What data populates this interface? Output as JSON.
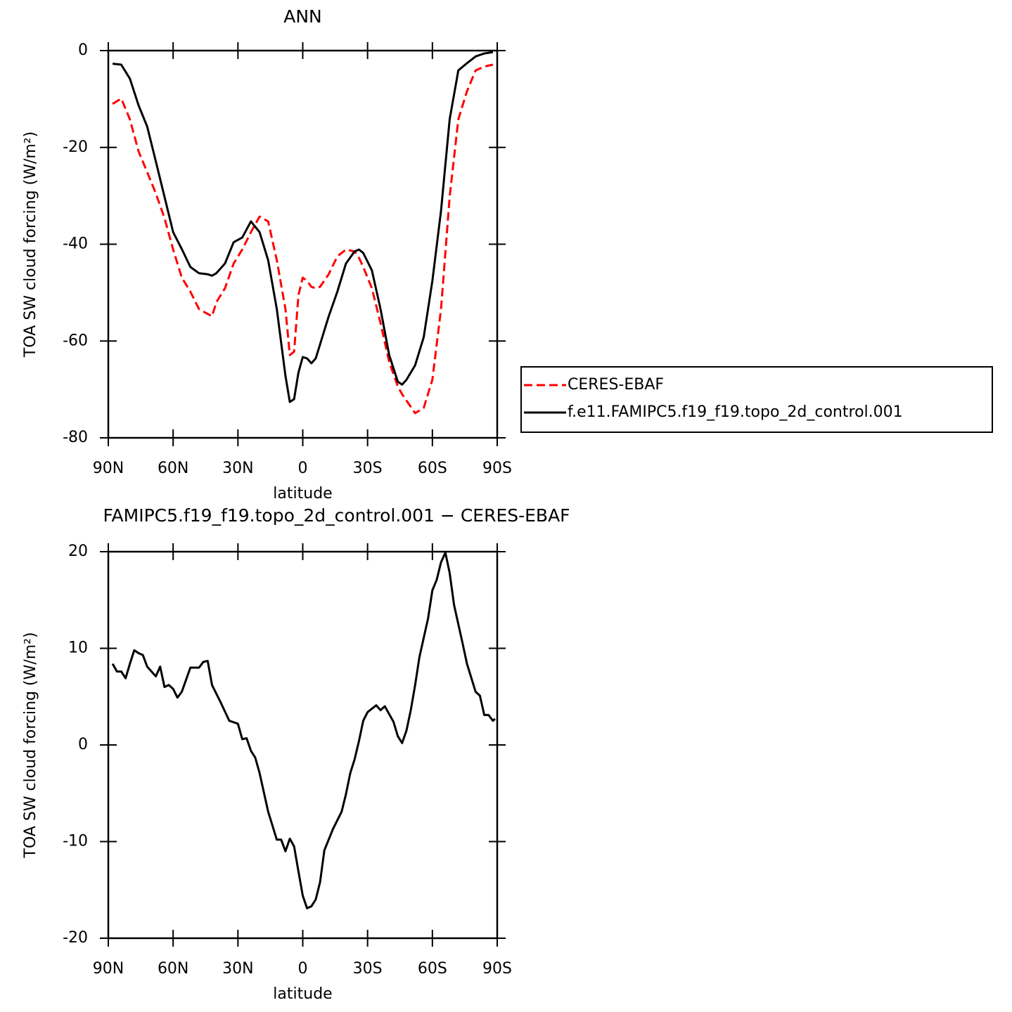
{
  "chart_data": [
    {
      "type": "line",
      "title": "ANN",
      "x_label": "latitude",
      "y_label": "TOA SW cloud forcing (W/m²)",
      "x": [
        88,
        84,
        80,
        76,
        72,
        68,
        64,
        60,
        56,
        52,
        48,
        44,
        42,
        40,
        36,
        32,
        28,
        24,
        20,
        16,
        12,
        8,
        6,
        4,
        2,
        0,
        -2,
        -4,
        -6,
        -8,
        -12,
        -16,
        -20,
        -24,
        -26,
        -28,
        -32,
        -36,
        -40,
        -44,
        -46,
        -48,
        -52,
        -56,
        -60,
        -64,
        -68,
        -72,
        -76,
        -80,
        -84,
        -88
      ],
      "series": [
        {
          "name": "CERES-EBAF",
          "color": "#ff0000",
          "linestyle": "dashed",
          "values": [
            -11,
            -9.9,
            -14.2,
            -20.8,
            -25.1,
            -29.5,
            -34.6,
            -41.1,
            -46.9,
            -49.8,
            -53.4,
            -54.4,
            -54.9,
            -52,
            -49.1,
            -44,
            -41.1,
            -37.5,
            -34.3,
            -35.3,
            -43.3,
            -53.4,
            -62.9,
            -62.2,
            -50.5,
            -46.9,
            -47.6,
            -48.8,
            -49.1,
            -48.8,
            -46.2,
            -42.5,
            -41.1,
            -41.5,
            -42.8,
            -44.7,
            -49.1,
            -56.3,
            -64.3,
            -69.4,
            -71,
            -72.3,
            -74.9,
            -73.8,
            -68,
            -53.4,
            -30.2,
            -14.2,
            -8.4,
            -4.1,
            -3.3,
            -2.9
          ]
        },
        {
          "name": "f.e11.FAMIPC5.f19_f19.topo_2d_control.001",
          "color": "#000000",
          "linestyle": "solid",
          "values": [
            -2.7,
            -2.9,
            -5.8,
            -11.3,
            -15.7,
            -22.9,
            -30.2,
            -37.5,
            -41,
            -44.7,
            -46,
            -46.2,
            -46.5,
            -46,
            -44,
            -39.6,
            -38.6,
            -35.3,
            -37.5,
            -43.3,
            -53.4,
            -67.2,
            -72.6,
            -72,
            -66.5,
            -63.3,
            -63.6,
            -64.6,
            -63.6,
            -60.7,
            -54.9,
            -49.8,
            -44,
            -41.5,
            -41.1,
            -41.8,
            -45.4,
            -53.4,
            -62.9,
            -68.4,
            -69,
            -68,
            -65,
            -59.2,
            -47.6,
            -33.1,
            -14.2,
            -4.1,
            -2.6,
            -1.2,
            -0.6,
            -0.3
          ]
        }
      ],
      "xlim": [
        90,
        -90
      ],
      "xticks": [
        {
          "value": 90,
          "label": "90N"
        },
        {
          "value": 60,
          "label": "60N"
        },
        {
          "value": 30,
          "label": "30N"
        },
        0,
        {
          "value": -30,
          "label": "30S"
        },
        {
          "value": -60,
          "label": "60S"
        },
        {
          "value": -90,
          "label": "90S"
        }
      ],
      "ylim": [
        -80,
        0
      ],
      "yticks": [
        0,
        -20,
        -40,
        -60,
        -80
      ],
      "legend": "right"
    },
    {
      "type": "line",
      "title": "FAMIPC5.f19_f19.topo_2d_control.001 − CERES-EBAF",
      "x_label": "latitude",
      "y_label": "TOA SW cloud forcing (W/m²)",
      "color": "#000000",
      "x": [
        88,
        86,
        84,
        82,
        80,
        78,
        76,
        74,
        72,
        68,
        66,
        64,
        62,
        60,
        58,
        56,
        52,
        48,
        46,
        44,
        42,
        38,
        34,
        30,
        28,
        26,
        24,
        22,
        20,
        16,
        12,
        10,
        8,
        6,
        4,
        2,
        0,
        -2,
        -4,
        -6,
        -8,
        -10,
        -14,
        -18,
        -20,
        -22,
        -24,
        -26,
        -28,
        -30,
        -34,
        -36,
        -38,
        -42,
        -44,
        -46,
        -48,
        -50,
        -52,
        -54,
        -58,
        -60,
        -62,
        -64,
        -66,
        -68,
        -70,
        -74,
        -76,
        -80,
        -82,
        -84,
        -86,
        -88,
        -89
      ],
      "values": [
        8.4,
        7.6,
        7.6,
        6.9,
        8.4,
        9.8,
        9.5,
        9.3,
        8.1,
        7.1,
        8.1,
        6.0,
        6.2,
        5.8,
        4.9,
        5.5,
        8.0,
        8.0,
        8.6,
        8.7,
        6.2,
        4.4,
        2.5,
        2.2,
        0.6,
        0.7,
        -0.6,
        -1.3,
        -2.9,
        -6.9,
        -9.8,
        -9.8,
        -11,
        -9.7,
        -10.5,
        -13.1,
        -15.6,
        -16.9,
        -16.7,
        -16.0,
        -14.2,
        -10.9,
        -8.7,
        -6.9,
        -5.1,
        -2.9,
        -1.5,
        0.4,
        2.5,
        3.4,
        4.1,
        3.6,
        4.0,
        2.4,
        0.9,
        0.2,
        1.5,
        3.6,
        6.2,
        9.1,
        13.1,
        16.0,
        17.1,
        18.9,
        19.9,
        17.8,
        14.5,
        10.5,
        8.4,
        5.5,
        5.1,
        3.1,
        3.1,
        2.5,
        2.7
      ],
      "xlim": [
        90,
        -90
      ],
      "xticks": [
        {
          "value": 90,
          "label": "90N"
        },
        {
          "value": 60,
          "label": "60N"
        },
        {
          "value": 30,
          "label": "30N"
        },
        0,
        {
          "value": -30,
          "label": "30S"
        },
        {
          "value": -60,
          "label": "60S"
        },
        {
          "value": -90,
          "label": "90S"
        }
      ],
      "ylim": [
        -20,
        20
      ],
      "yticks": [
        20,
        10,
        0,
        -10,
        -20
      ]
    }
  ]
}
